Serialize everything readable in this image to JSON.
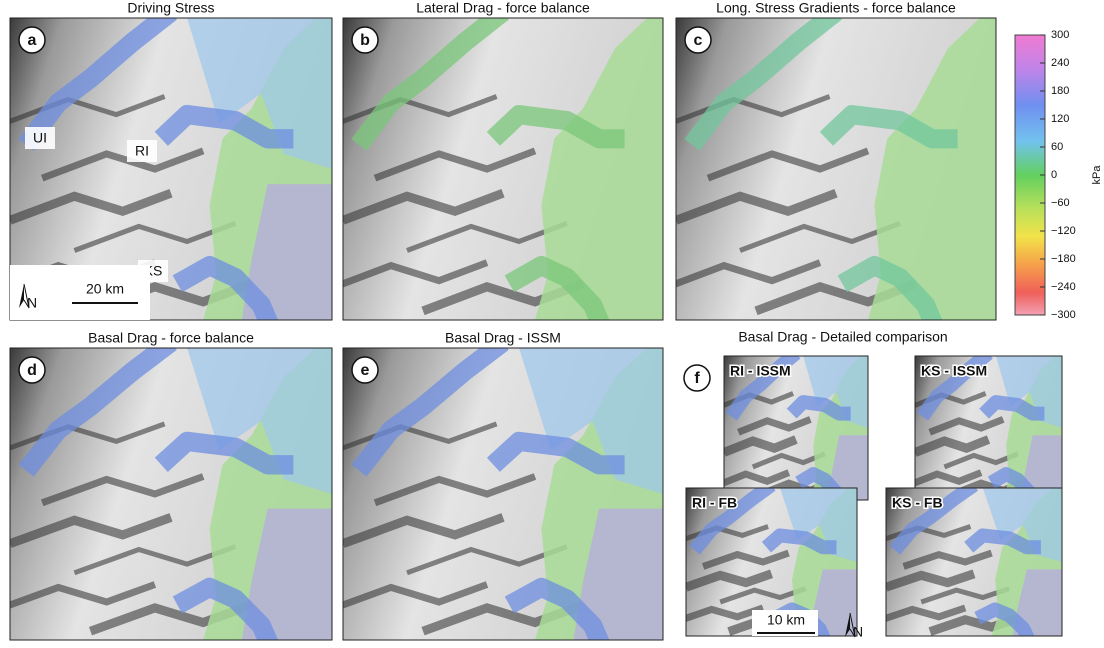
{
  "panels": [
    {
      "letter": "a",
      "title": "Driving Stress",
      "labels": [
        "UI",
        "RI",
        "KS"
      ],
      "scale_bar": "20 km",
      "north": "N"
    },
    {
      "letter": "b",
      "title": "Lateral Drag - force balance"
    },
    {
      "letter": "c",
      "title": "Long. Stress Gradients - force balance"
    },
    {
      "letter": "d",
      "title": "Basal Drag - force balance"
    },
    {
      "letter": "e",
      "title": "Basal Drag - ISSM"
    }
  ],
  "detail": {
    "letter": "f",
    "title": "Basal Drag - Detailed comparison",
    "insets": [
      "RI - ISSM",
      "KS - ISSM",
      "RI - FB",
      "KS - FB"
    ],
    "scale_bar": "10 km",
    "north": "N"
  },
  "colorbar": {
    "label": "kPa",
    "lim": [
      -300,
      300
    ],
    "ticks": [
      300,
      240,
      180,
      120,
      60,
      0,
      {
        "value": -60,
        "label": "−60"
      },
      {
        "value": -120,
        "label": "−120"
      },
      {
        "value": -180,
        "label": "−180"
      },
      {
        "value": -240,
        "label": "−240"
      },
      {
        "value": -300,
        "label": "−300"
      }
    ]
  }
}
